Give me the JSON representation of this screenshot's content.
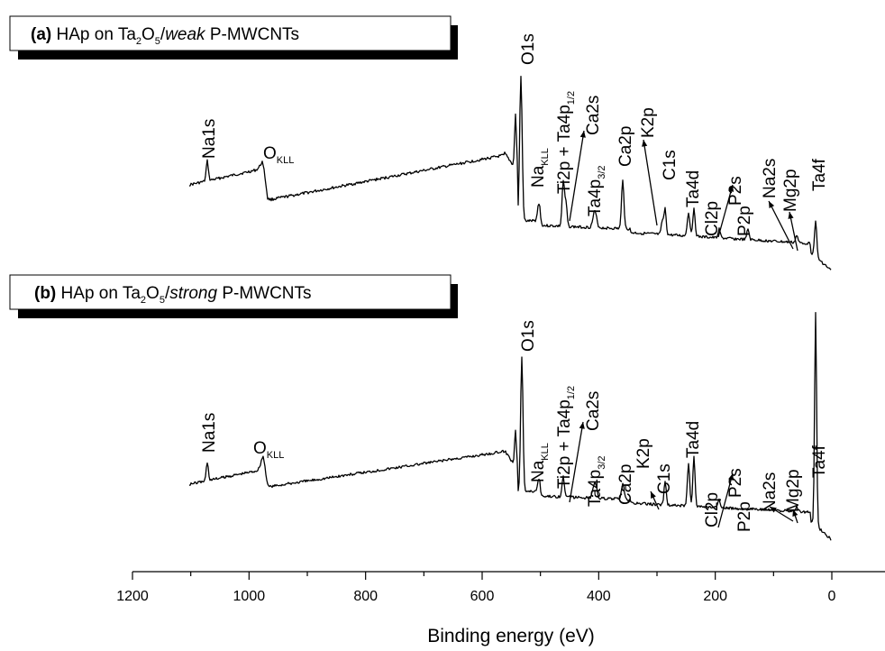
{
  "chart_data": {
    "type": "line",
    "xlabel": "Binding energy (eV)",
    "xlim": [
      1200,
      -80
    ],
    "x_reversed": true,
    "xticks": [
      "1200",
      "1000",
      "800",
      "600",
      "400",
      "200",
      "0"
    ],
    "series": [
      {
        "id": "a",
        "title_parts": [
          {
            "t": "(a)",
            "w": "bold"
          },
          {
            "t": " HAp on Ta"
          },
          {
            "t": "2",
            "sub": true
          },
          {
            "t": "O"
          },
          {
            "t": "5",
            "sub": true
          },
          {
            "t": "/"
          },
          {
            "t": "weak",
            "i": true
          },
          {
            "t": " P-MWCNTs"
          }
        ],
        "labels": [
          {
            "key": "na1s",
            "parts": [
              {
                "t": "Na1s"
              }
            ]
          },
          {
            "key": "okll",
            "parts": [
              {
                "t": "O"
              },
              {
                "t": "KLL",
                "sub": true
              }
            ]
          },
          {
            "key": "o1s",
            "parts": [
              {
                "t": "O1s"
              }
            ]
          },
          {
            "key": "nakll",
            "parts": [
              {
                "t": "Na"
              },
              {
                "t": "KLL",
                "sub": true
              }
            ]
          },
          {
            "key": "ti2p",
            "parts": [
              {
                "t": "Ti2p + Ta4p"
              },
              {
                "t": "1/2",
                "sub": true
              }
            ]
          },
          {
            "key": "ca2s",
            "parts": [
              {
                "t": "Ca2s"
              }
            ]
          },
          {
            "key": "ta4p32",
            "parts": [
              {
                "t": "Ta4p"
              },
              {
                "t": "3/2",
                "sub": true
              }
            ]
          },
          {
            "key": "ca2p",
            "parts": [
              {
                "t": "Ca2p"
              }
            ]
          },
          {
            "key": "k2p",
            "parts": [
              {
                "t": "K2p"
              }
            ]
          },
          {
            "key": "c1s",
            "parts": [
              {
                "t": "C1s"
              }
            ]
          },
          {
            "key": "ta4d",
            "parts": [
              {
                "t": "Ta4d"
              }
            ]
          },
          {
            "key": "cl2p",
            "parts": [
              {
                "t": "Cl2p"
              }
            ]
          },
          {
            "key": "p2s",
            "parts": [
              {
                "t": "P2s"
              }
            ]
          },
          {
            "key": "p2p",
            "parts": [
              {
                "t": "P2p"
              }
            ]
          },
          {
            "key": "na2s",
            "parts": [
              {
                "t": "Na2s"
              }
            ]
          },
          {
            "key": "mg2p",
            "parts": [
              {
                "t": "Mg2p"
              }
            ]
          },
          {
            "key": "ta4f",
            "parts": [
              {
                "t": "Ta4f"
              }
            ]
          }
        ]
      },
      {
        "id": "b",
        "title_parts": [
          {
            "t": "(b)",
            "w": "bold"
          },
          {
            "t": " HAp on Ta"
          },
          {
            "t": "2",
            "sub": true
          },
          {
            "t": "O"
          },
          {
            "t": "5",
            "sub": true
          },
          {
            "t": "/"
          },
          {
            "t": "strong",
            "i": true
          },
          {
            "t": " P-MWCNTs"
          }
        ],
        "labels": [
          {
            "key": "na1s",
            "parts": [
              {
                "t": "Na1s"
              }
            ]
          },
          {
            "key": "okll",
            "parts": [
              {
                "t": "O"
              },
              {
                "t": "KLL",
                "sub": true
              }
            ]
          },
          {
            "key": "o1s",
            "parts": [
              {
                "t": "O1s"
              }
            ]
          },
          {
            "key": "nakll",
            "parts": [
              {
                "t": "Na"
              },
              {
                "t": "KLL",
                "sub": true
              }
            ]
          },
          {
            "key": "ti2p",
            "parts": [
              {
                "t": "Ti2p + Ta4p"
              },
              {
                "t": "1/2",
                "sub": true
              }
            ]
          },
          {
            "key": "ca2s",
            "parts": [
              {
                "t": "Ca2s"
              }
            ]
          },
          {
            "key": "ta4p32",
            "parts": [
              {
                "t": "Ta4p"
              },
              {
                "t": "3/2",
                "sub": true
              }
            ]
          },
          {
            "key": "ca2p",
            "parts": [
              {
                "t": "Ca2p"
              }
            ]
          },
          {
            "key": "k2p",
            "parts": [
              {
                "t": "K2p"
              }
            ]
          },
          {
            "key": "c1s",
            "parts": [
              {
                "t": "C1s"
              }
            ]
          },
          {
            "key": "ta4d",
            "parts": [
              {
                "t": "Ta4d"
              }
            ]
          },
          {
            "key": "cl2p",
            "parts": [
              {
                "t": "Cl2p"
              }
            ]
          },
          {
            "key": "p2s",
            "parts": [
              {
                "t": "P2s"
              }
            ]
          },
          {
            "key": "p2p",
            "parts": [
              {
                "t": "P2p"
              }
            ]
          },
          {
            "key": "na2s",
            "parts": [
              {
                "t": "Na2s"
              }
            ]
          },
          {
            "key": "mg2p",
            "parts": [
              {
                "t": "Mg2p"
              }
            ]
          },
          {
            "key": "ta4f",
            "parts": [
              {
                "t": "Ta4f"
              }
            ]
          }
        ]
      }
    ],
    "grid": false,
    "y_axis_shown": false
  }
}
